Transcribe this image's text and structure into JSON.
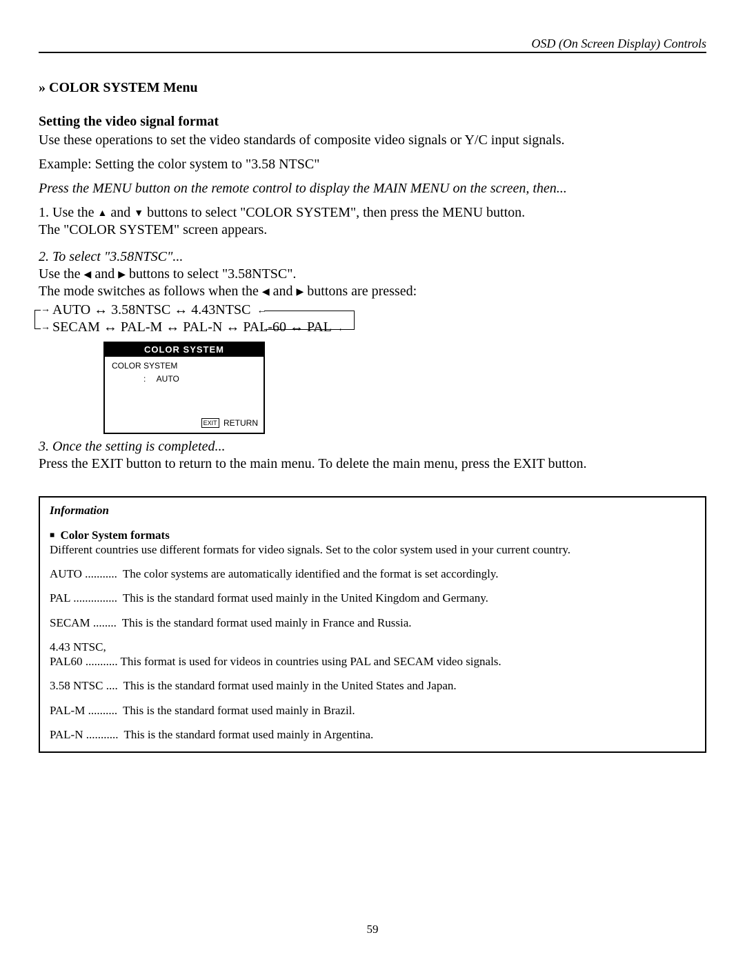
{
  "header": {
    "section_label": "OSD (On Screen Display) Controls"
  },
  "menu": {
    "title": "» COLOR SYSTEM Menu",
    "subtitle": "Setting the video signal format",
    "intro": "Use these operations to set the video standards of composite video signals or Y/C input signals.",
    "example": "Example: Setting the color system to \"3.58 NTSC\"",
    "press_menu": "Press the MENU button on the remote control to display the MAIN MENU on the screen, then...",
    "step1_a": "1. Use the ",
    "step1_b": " and ",
    "step1_c": " buttons to select \"COLOR SYSTEM\", then press the MENU button.",
    "step1_d": "The \"COLOR SYSTEM\" screen appears.",
    "step2_title": "2. To select \"3.58NTSC\"...",
    "step2_a": "Use the ",
    "step2_b": " and ",
    "step2_c": " buttons to select \"3.58NTSC\".",
    "step2_d_a": "The mode switches as follows when the ",
    "step2_d_b": " and ",
    "step2_d_c": " buttons are pressed:",
    "flow_line1": "AUTO ↔ 3.58NTSC ↔ 4.43NTSC",
    "flow_line2": "SECAM ↔ PAL-M ↔ PAL-N ↔ PAL-60 ↔ PAL",
    "step3_title": "3. Once the setting is completed...",
    "step3_body": "Press the EXIT button to return to the main menu. To delete the main menu, press the EXIT button."
  },
  "osd": {
    "title": "COLOR SYSTEM",
    "label": "COLOR SYSTEM",
    "colon": ":",
    "value": "AUTO",
    "exit": "EXIT",
    "return": "RETURN"
  },
  "info": {
    "title": "Information",
    "sub": "Color System formats",
    "desc": "Different countries use different formats for video signals. Set to the color system used in your current country.",
    "formats": [
      {
        "name": "AUTO",
        "dots": "...........",
        "desc": "The color systems are automatically identified and the format is set accordingly."
      },
      {
        "name": "PAL",
        "dots": "...............",
        "desc": "This is the standard format used mainly in the United Kingdom and Germany."
      },
      {
        "name": "SECAM",
        "dots": "........",
        "desc": "This is the standard format used mainly in France and Russia."
      },
      {
        "name": "4.43 NTSC,\nPAL60",
        "dots": "...........",
        "desc": "This format is used for videos in countries using PAL and SECAM video signals."
      },
      {
        "name": "3.58 NTSC",
        "dots": "....",
        "desc": "This is the standard format used mainly in the United States and Japan."
      },
      {
        "name": "PAL-M",
        "dots": "..........",
        "desc": "This is the standard format used mainly in Brazil."
      },
      {
        "name": "PAL-N",
        "dots": "...........",
        "desc": "This is the standard format used mainly in Argentina."
      }
    ]
  },
  "page_number": "59",
  "glyphs": {
    "up": "▲",
    "down": "▼",
    "left": "◀",
    "right": "▶",
    "rarrow": "→",
    "larrow": "←",
    "square": "■"
  }
}
